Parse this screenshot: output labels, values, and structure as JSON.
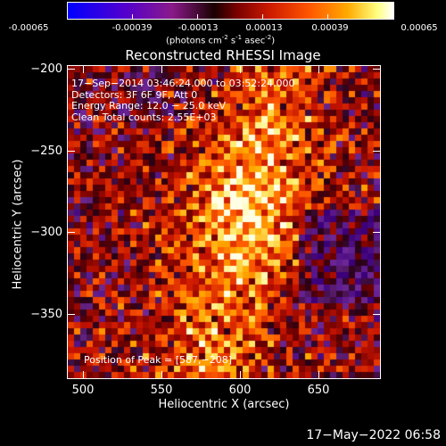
{
  "colorbar": {
    "ticks": [
      "-0.00065",
      "-0.00039",
      "-0.00013",
      "0.00013",
      "0.00039",
      "0.00065"
    ],
    "units_prefix": "(photons cm",
    "units_exp1": "-2",
    "units_mid1": " s",
    "units_exp2": "-1",
    "units_mid2": " asec",
    "units_exp3": "-2",
    "units_suffix": ")"
  },
  "plot": {
    "title": "Reconstructed RHESSI Image",
    "xlabel": "Heliocentric X (arcsec)",
    "ylabel": "Heliocentric Y (arcsec)",
    "xticks": [
      "500",
      "550",
      "600",
      "650"
    ],
    "yticks": [
      "−200",
      "−250",
      "−300",
      "−350"
    ],
    "info_lines": [
      "17−Sep−2014 03:46:24.000 to 03:52:24.000",
      "Detectors: 3F 6F 9F, Att 0",
      "Energy Range: 12.0 − 25.0 keV",
      "Clean    Total counts: 2.55E+03"
    ],
    "peak_label": "Position of Peak = [587,−208]"
  },
  "footer": {
    "timestamp": "17−May−2022 06:58"
  },
  "colors": {
    "background": "#000000",
    "foreground": "#ffffff"
  }
}
